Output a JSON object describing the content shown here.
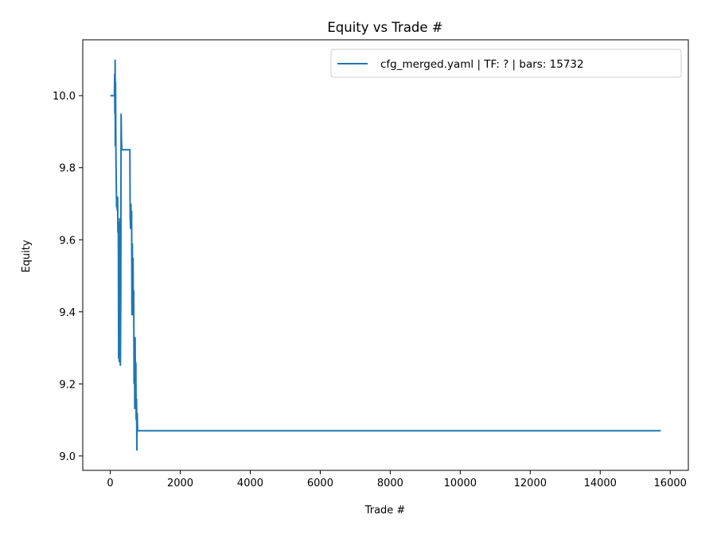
{
  "chart_data": {
    "type": "line",
    "title": "Equity vs Trade #",
    "xlabel": "Trade #",
    "ylabel": "Equity",
    "xlim": [
      -786,
      16518
    ],
    "ylim": [
      8.96,
      10.155
    ],
    "xticks": [
      0,
      2000,
      4000,
      6000,
      8000,
      10000,
      12000,
      14000,
      16000
    ],
    "yticks": [
      9.0,
      9.2,
      9.4,
      9.6,
      9.8,
      10.0
    ],
    "ytick_labels": [
      "9.0",
      "9.2",
      "9.4",
      "9.6",
      "9.8",
      "10.0"
    ],
    "grid": false,
    "legend": "top-right",
    "series": [
      {
        "name": "cfg_merged.yaml | TF: ? | bars: 15732",
        "color": "#1f77b4",
        "x": [
          0,
          120,
          125,
          130,
          135,
          140,
          145,
          150,
          160,
          170,
          180,
          190,
          200,
          210,
          220,
          230,
          240,
          250,
          260,
          270,
          280,
          290,
          300,
          310,
          320,
          330,
          340,
          350,
          360,
          560,
          570,
          580,
          590,
          600,
          610,
          620,
          630,
          640,
          650,
          660,
          670,
          680,
          690,
          700,
          710,
          720,
          730,
          740,
          750,
          760,
          770,
          780,
          790,
          15732
        ],
        "y": [
          10.0,
          10.0,
          10.06,
          9.95,
          10.04,
          10.1,
          9.86,
          10.04,
          9.86,
          9.78,
          9.69,
          9.71,
          9.68,
          9.72,
          9.62,
          9.65,
          9.27,
          9.52,
          9.26,
          9.66,
          9.3,
          9.25,
          9.45,
          9.95,
          9.88,
          9.85,
          9.85,
          9.85,
          9.85,
          9.85,
          9.66,
          9.63,
          9.7,
          9.65,
          9.68,
          9.39,
          9.59,
          9.41,
          9.55,
          9.39,
          9.46,
          9.2,
          9.32,
          9.13,
          9.33,
          9.16,
          9.26,
          9.1,
          9.16,
          9.015,
          9.12,
          9.07,
          9.07,
          9.07
        ]
      }
    ]
  }
}
